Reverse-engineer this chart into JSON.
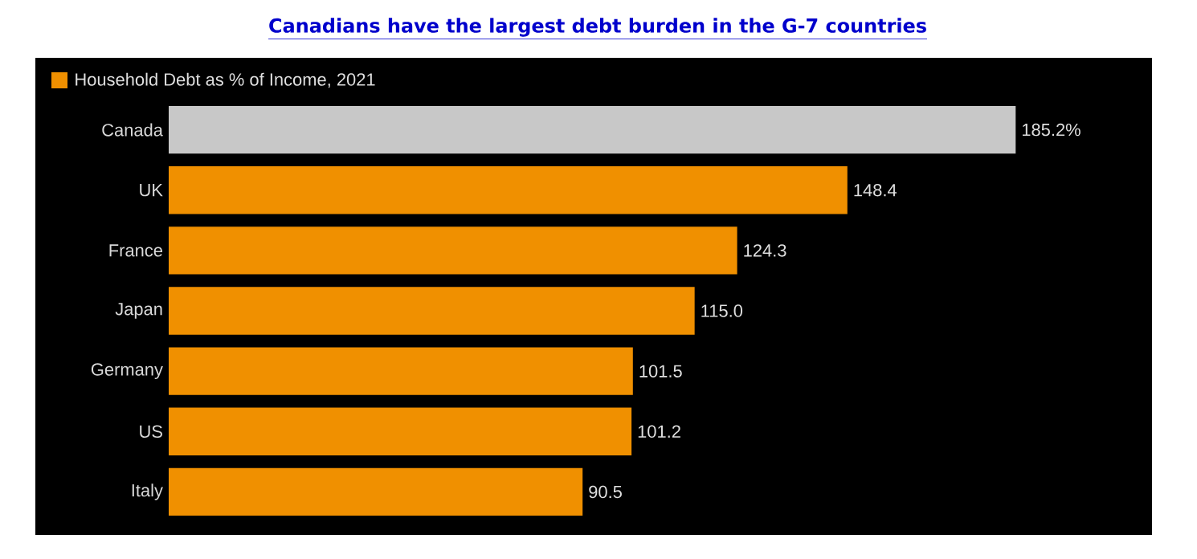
{
  "chart_data": {
    "type": "bar",
    "orientation": "horizontal",
    "title": "Canadians have the largest debt burden in the G-7 countries",
    "categories": [
      "Canada",
      "UK",
      "France",
      "Japan",
      "Germany",
      "US",
      "Italy"
    ],
    "series": [
      {
        "name": "Household Debt as % of Income, 2021",
        "color": "#f09000",
        "values": [
          185.2,
          148.4,
          124.3,
          115.0,
          101.5,
          101.2,
          90.5
        ],
        "colors": [
          "#c8c8c8",
          "#f09000",
          "#f09000",
          "#f09000",
          "#f09000",
          "#f09000",
          "#f09000"
        ],
        "value_labels": [
          "185.2%",
          "148.4",
          "124.3",
          "115.0",
          "101.5",
          "101.2",
          "90.5"
        ]
      }
    ],
    "legend": "top left"
  }
}
